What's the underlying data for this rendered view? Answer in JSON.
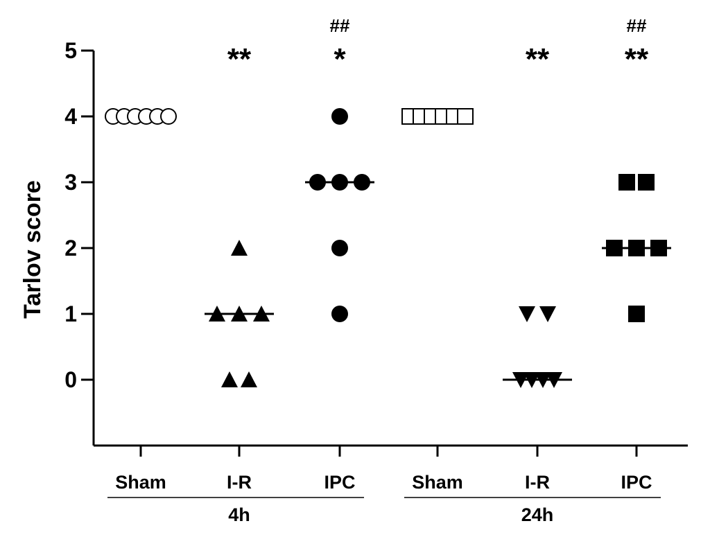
{
  "chart_data": {
    "type": "scatter",
    "ylabel": "Tarlov score",
    "ylim": [
      -1,
      5
    ],
    "yticks": [
      0,
      1,
      2,
      3,
      4,
      5
    ],
    "categories": [
      "Sham",
      "I-R",
      "IPC",
      "Sham",
      "I-R",
      "IPC"
    ],
    "group_labels": [
      "4h",
      "24h"
    ],
    "series": [
      {
        "category": "Sham",
        "group": "4h",
        "marker": "open-circle",
        "values": [
          4,
          4,
          4,
          4,
          4,
          4
        ],
        "median": 4,
        "annotations": []
      },
      {
        "category": "I-R",
        "group": "4h",
        "marker": "triangle-up",
        "values": [
          2,
          1,
          1,
          1,
          0,
          0
        ],
        "median": 1,
        "annotations": [
          "**"
        ]
      },
      {
        "category": "IPC",
        "group": "4h",
        "marker": "filled-circle",
        "values": [
          4,
          3,
          3,
          3,
          2,
          1
        ],
        "median": 3,
        "annotations": [
          "*",
          "##"
        ]
      },
      {
        "category": "Sham",
        "group": "24h",
        "marker": "open-square",
        "values": [
          4,
          4,
          4,
          4,
          4,
          4
        ],
        "median": 4,
        "annotations": []
      },
      {
        "category": "I-R",
        "group": "24h",
        "marker": "triangle-down",
        "values": [
          1,
          1,
          0,
          0,
          0,
          0
        ],
        "median": 0,
        "annotations": [
          "**"
        ]
      },
      {
        "category": "IPC",
        "group": "24h",
        "marker": "filled-square",
        "values": [
          3,
          3,
          2,
          2,
          2,
          1
        ],
        "median": 2,
        "annotations": [
          "**",
          "##"
        ]
      }
    ],
    "legend": "none",
    "grid": false
  },
  "colors": {
    "marks": "#000000",
    "background": "#ffffff"
  }
}
